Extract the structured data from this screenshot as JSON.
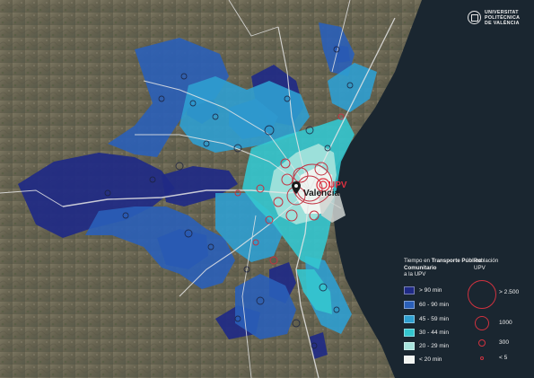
{
  "logo": {
    "lines": [
      "UNIVERSITAT",
      "POLITÈCNICA",
      "DE VALÈNCIA"
    ]
  },
  "map_labels": {
    "city": "Valencia",
    "campus": "UPV"
  },
  "legend": {
    "time_title_prefix": "Tiempo en ",
    "time_title_bold": "Transporte Público Comunitario",
    "time_title_suffix": "a la UPV",
    "time_classes": [
      {
        "label": "> 90 min",
        "color": "#1f2a85"
      },
      {
        "label": "60 - 90 min",
        "color": "#2a5fb8"
      },
      {
        "label": "45 - 59 min",
        "color": "#2f9fd0"
      },
      {
        "label": "30 - 44 min",
        "color": "#34c6cf"
      },
      {
        "label": "20 - 29 min",
        "color": "#a7e3dd"
      },
      {
        "label": "< 20 min",
        "color": "#f2f5f2"
      }
    ],
    "population_title_line1": "Población",
    "population_title_line2": "UPV",
    "population_classes": [
      {
        "label": "> 2.500"
      },
      {
        "label": "1000"
      },
      {
        "label": "300"
      },
      {
        "label": "< 5"
      }
    ],
    "population_color": "#d0323f"
  },
  "colors": {
    "sea": "#1a2630",
    "land": "#6f6a58",
    "roads": "#e6e6e6"
  }
}
